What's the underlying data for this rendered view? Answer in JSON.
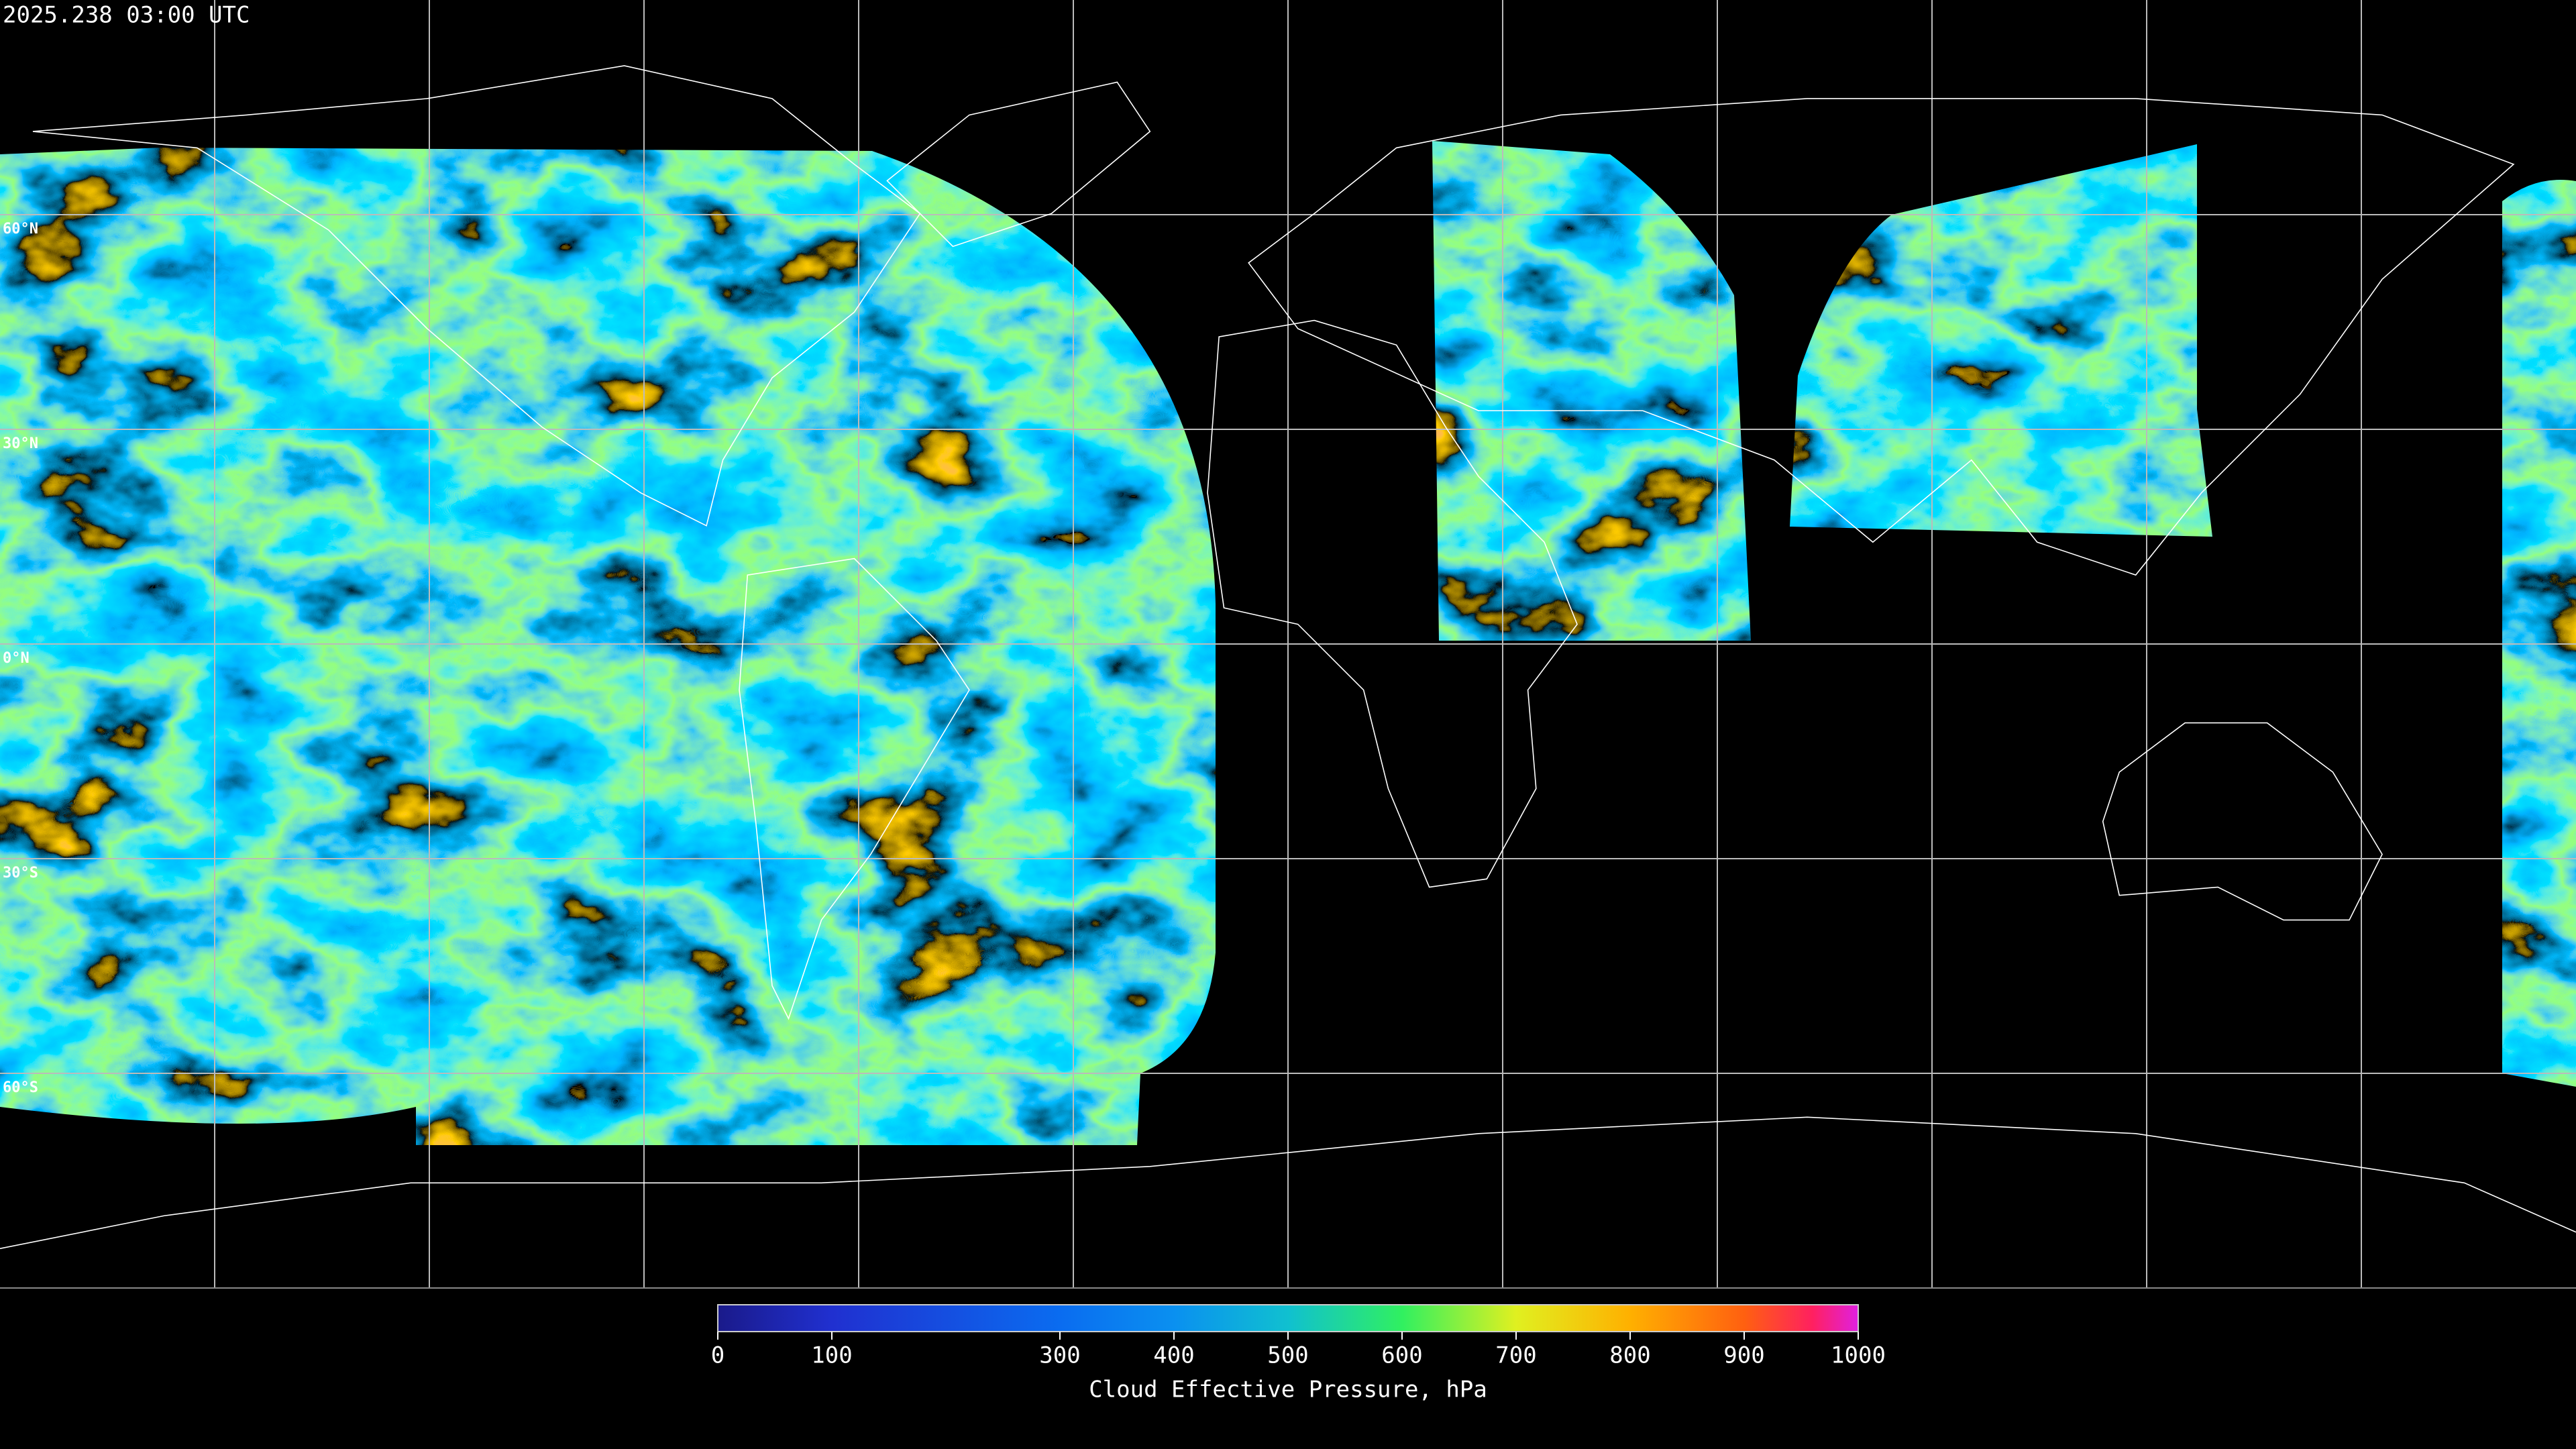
{
  "header": {
    "timestamp": "2025.238 03:00 UTC"
  },
  "map": {
    "parallels": [
      {
        "value": 60,
        "label": "60°N"
      },
      {
        "value": 30,
        "label": "30°N"
      },
      {
        "value": 0,
        "label": "0°N"
      },
      {
        "value": -30,
        "label": "30°S"
      },
      {
        "value": -60,
        "label": "60°S"
      }
    ]
  },
  "colorbar": {
    "label": "Cloud Effective Pressure, hPa",
    "range": [
      0,
      1000
    ],
    "ticks": [
      0,
      100,
      300,
      400,
      500,
      600,
      700,
      800,
      900,
      1000
    ]
  }
}
